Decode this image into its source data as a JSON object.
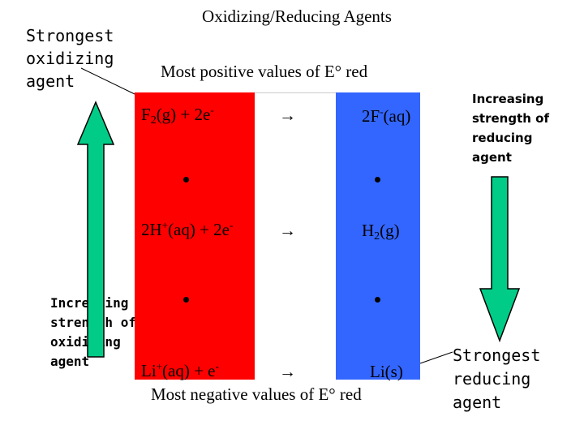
{
  "title": "Oxidizing/Reducing Agents",
  "subtitle": "Most positive values of E° red",
  "bottom_label": "Most negative values of E° red",
  "left_labels": {
    "strongest": [
      "Strongest",
      "oxidizing",
      "agent"
    ],
    "increasing": [
      "Increasing",
      "strength of",
      "oxidizing",
      "agent"
    ]
  },
  "right_labels": {
    "increasing": [
      "Increasing",
      "strength of",
      "reducing",
      "agent"
    ],
    "strongest": [
      "Strongest",
      "reducing",
      "agent"
    ]
  },
  "reactions": [
    {
      "left": [
        "F",
        "2",
        "(g)  +  2e",
        "-"
      ],
      "arrow": "→",
      "right": [
        "2F",
        "-",
        "(aq)"
      ]
    },
    {
      "left": [
        "2H",
        "+",
        "(aq) + 2e",
        "-"
      ],
      "arrow": "→",
      "right": [
        "H",
        "2",
        "(g)"
      ]
    },
    {
      "left": [
        "Li",
        "+",
        "(aq) + e",
        "-"
      ],
      "arrow": "→",
      "right": [
        "Li(s)"
      ]
    }
  ],
  "colors": {
    "red_column": "#ff0000",
    "blue_column": "#3366ff",
    "arrow_fill": "#00cc88"
  }
}
